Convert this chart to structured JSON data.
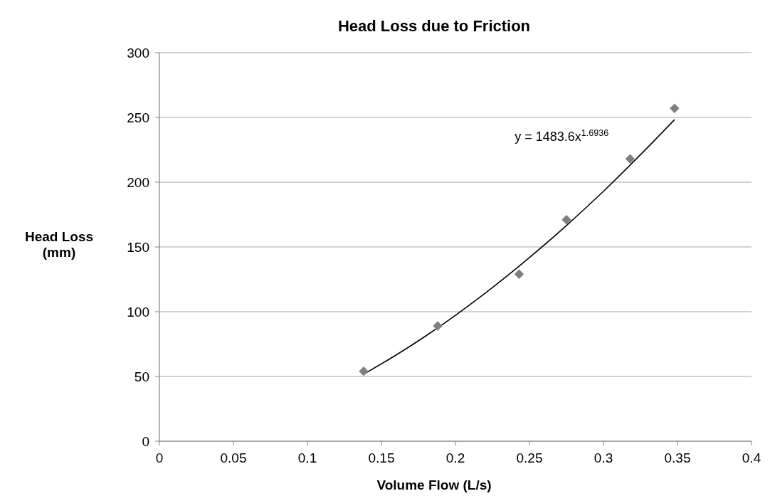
{
  "chart_data": {
    "type": "scatter",
    "title": "Head Loss due to Friction",
    "xlabel": "Volume Flow (L/s)",
    "ylabel": "Head Loss (mm)",
    "xlim": [
      0,
      0.4
    ],
    "xticks": [
      0,
      0.05,
      0.1,
      0.15,
      0.2,
      0.25,
      0.3,
      0.35,
      0.4
    ],
    "ylim": [
      0,
      300
    ],
    "yticks": [
      0,
      50,
      100,
      150,
      200,
      250,
      300
    ],
    "grid": "y",
    "marker": "diamond",
    "annotations": [
      "y = 1483.6x$^{1.6936}$"
    ],
    "series": [
      {
        "color": "#7f7f7f",
        "x": [
          0.138,
          0.188,
          0.243,
          0.275,
          0.318,
          0.348
        ],
        "values": [
          54,
          89,
          129,
          171,
          218,
          257
        ]
      },
      {
        "type": "line",
        "color": "#000000",
        "marker": "none",
        "x": [
          0.138,
          0.16,
          0.18,
          0.2,
          0.22,
          0.25,
          0.275,
          0.3,
          0.325,
          0.348
        ],
        "values": [
          51.8,
          66.6,
          81.3,
          97.2,
          114.2,
          141.8,
          166.6,
          193.0,
          221.2,
          248.3
        ]
      }
    ]
  }
}
